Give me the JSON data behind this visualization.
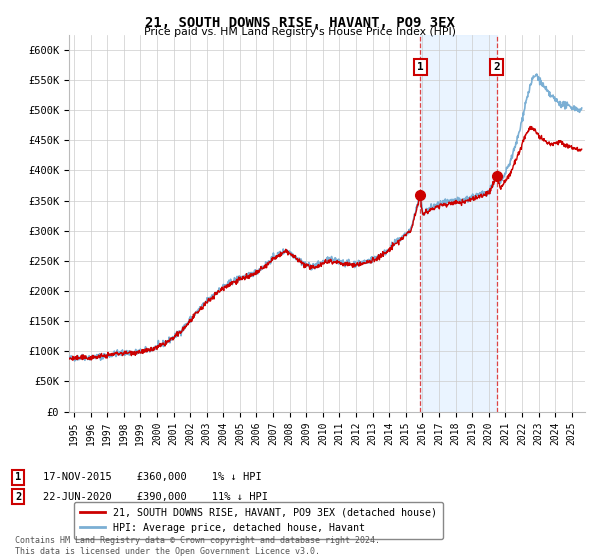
{
  "title": "21, SOUTH DOWNS RISE, HAVANT, PO9 3EX",
  "subtitle": "Price paid vs. HM Land Registry's House Price Index (HPI)",
  "ylabel_ticks": [
    "£0",
    "£50K",
    "£100K",
    "£150K",
    "£200K",
    "£250K",
    "£300K",
    "£350K",
    "£400K",
    "£450K",
    "£500K",
    "£550K",
    "£600K"
  ],
  "ytick_values": [
    0,
    50000,
    100000,
    150000,
    200000,
    250000,
    300000,
    350000,
    400000,
    450000,
    500000,
    550000,
    600000
  ],
  "ylim": [
    0,
    625000
  ],
  "xlim_start": 1994.7,
  "xlim_end": 2025.8,
  "xtick_years": [
    1995,
    1996,
    1997,
    1998,
    1999,
    2000,
    2001,
    2002,
    2003,
    2004,
    2005,
    2006,
    2007,
    2008,
    2009,
    2010,
    2011,
    2012,
    2013,
    2014,
    2015,
    2016,
    2017,
    2018,
    2019,
    2020,
    2021,
    2022,
    2023,
    2024,
    2025
  ],
  "hpi_color": "#7bafd4",
  "price_color": "#cc0000",
  "marker_color": "#cc0000",
  "sale1_x": 2015.88,
  "sale1_y": 360000,
  "sale1_label": "1",
  "sale1_date": "17-NOV-2015",
  "sale1_price": "£360,000",
  "sale1_hpi": "1% ↓ HPI",
  "sale2_x": 2020.47,
  "sale2_y": 390000,
  "sale2_label": "2",
  "sale2_date": "22-JUN-2020",
  "sale2_price": "£390,000",
  "sale2_hpi": "11% ↓ HPI",
  "legend_line1": "21, SOUTH DOWNS RISE, HAVANT, PO9 3EX (detached house)",
  "legend_line2": "HPI: Average price, detached house, Havant",
  "footer": "Contains HM Land Registry data © Crown copyright and database right 2024.\nThis data is licensed under the Open Government Licence v3.0.",
  "background_color": "#ffffff",
  "grid_color": "#cccccc",
  "shaded_color": "#ddeeff"
}
